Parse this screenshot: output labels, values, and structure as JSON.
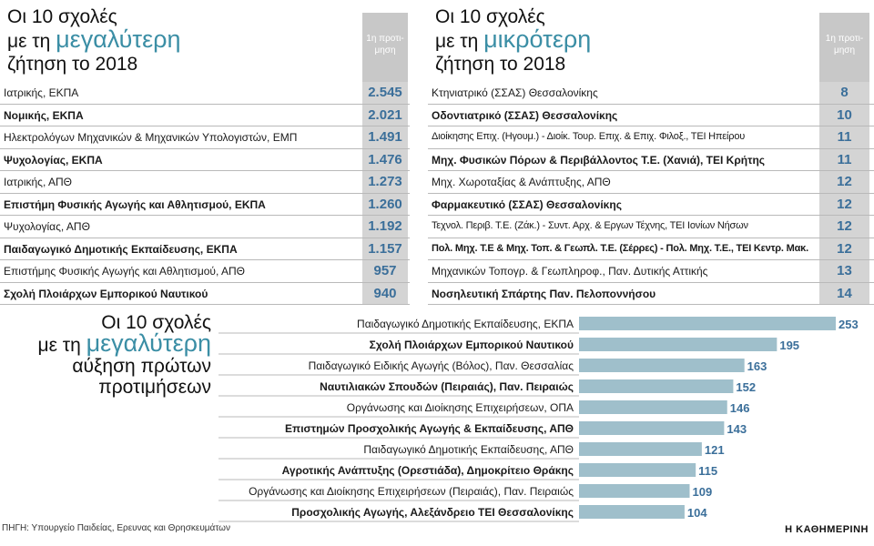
{
  "left_table": {
    "title_line1": "Οι 10 σχολές",
    "title_line2_prefix": "με τη ",
    "title_line2_highlight": "μεγαλύτερη",
    "title_line3": "ζήτηση το 2018",
    "column_header": "1η προτι- μηση",
    "rows": [
      {
        "name": "Ιατρικής, ΕΚΠΑ",
        "value": "2.545",
        "bold": false
      },
      {
        "name": "Νομικής,  ΕΚΠΑ",
        "value": "2.021",
        "bold": true
      },
      {
        "name": "Ηλεκτρολόγων Μηχανικών & Μηχανικών Υπολογιστών, ΕΜΠ",
        "value": "1.491",
        "bold": false
      },
      {
        "name": "Ψυχολογίας, ΕΚΠΑ",
        "value": "1.476",
        "bold": true
      },
      {
        "name": "Ιατρικής, ΑΠΘ",
        "value": "1.273",
        "bold": false
      },
      {
        "name": "Επιστήμη Φυσικής Αγωγής και Αθλητισμού, ΕΚΠΑ",
        "value": "1.260",
        "bold": true
      },
      {
        "name": "Ψυχολογίας, ΑΠΘ",
        "value": "1.192",
        "bold": false
      },
      {
        "name": "Παιδαγωγικό Δημοτικής Εκπαίδευσης, ΕΚΠΑ",
        "value": "1.157",
        "bold": true
      },
      {
        "name": "Επιστήμης Φυσικής Αγωγής και Αθλητισμού, ΑΠΘ",
        "value": "957",
        "bold": false
      },
      {
        "name": "Σχολή Πλοιάρχων Εμπορικού Ναυτικού",
        "value": "940",
        "bold": true
      }
    ]
  },
  "right_table": {
    "title_line1": "Οι 10 σχολές",
    "title_line2_prefix": "με τη ",
    "title_line2_highlight": "μικρότερη",
    "title_line3": "ζήτηση το 2018",
    "column_header": "1η προτι- μηση",
    "rows": [
      {
        "name": "Κτηνιατρικό (ΣΣΑΣ) Θεσσαλονίκης",
        "value": "8",
        "bold": false
      },
      {
        "name": "Οδοντιατρικό (ΣΣΑΣ) Θεσσαλονίκης",
        "value": "10",
        "bold": true
      },
      {
        "name": "Διοίκησης Επιχ. (Ηγουμ.) - Διοίκ. Τουρ. Επιχ. & Επιχ. Φιλοξ., ΤΕΙ Ηπείρου",
        "value": "11",
        "bold": false
      },
      {
        "name": "Μηχ. Φυσικών Πόρων & Περιβάλλοντος Τ.Ε. (Χανιά), ΤΕΙ Κρήτης",
        "value": "11",
        "bold": true
      },
      {
        "name": "Μηχ. Χωροταξίας & Ανάπτυξης, ΑΠΘ",
        "value": "12",
        "bold": false
      },
      {
        "name": "Φαρμακευτικό (ΣΣΑΣ) Θεσσαλονίκης",
        "value": "12",
        "bold": true
      },
      {
        "name": "Τεχνολ. Περιβ. Τ.Ε. (Ζάκ.) - Συντ. Αρχ. & Εργων Τέχνης, ΤΕΙ Ιονίων Νήσων",
        "value": "12",
        "bold": false
      },
      {
        "name": "Πολ. Μηχ. Τ.Ε & Μηχ. Τοπ. & Γεωπλ. Τ.Ε. (Σέρρες) - Πολ. Μηχ. Τ.Ε., ΤΕΙ Κεντρ. Μακ.",
        "value": "12",
        "bold": true
      },
      {
        "name": "Μηχανικών Τοπογρ. & Γεωπληροφ., Παν. Δυτικής Αττικής",
        "value": "13",
        "bold": false
      },
      {
        "name": "Νοσηλευτική Σπάρτης Παν. Πελοποννήσου",
        "value": "14",
        "bold": true
      }
    ]
  },
  "chart_data": {
    "type": "bar",
    "title_line1": "Οι 10 σχολές",
    "title_line2_prefix": "με τη ",
    "title_line2_highlight": "μεγαλύτερη",
    "title_line3": "αύξηση πρώτων",
    "title_line4": "προτιμήσεων",
    "orientation": "horizontal",
    "categories": [
      "Παιδαγωγικό Δημοτικής Εκπαίδευσης, ΕΚΠΑ",
      "Σχολή Πλοιάρχων Εμπορικού Ναυτικού",
      "Παιδαγωγικό Ειδικής Αγωγής (Βόλος), Παν. Θεσσαλίας",
      "Ναυτιλιακών Σπουδών (Πειραιάς), Παν. Πειραιώς",
      "Οργάνωσης και Διοίκησης Επιχειρήσεων, ΟΠΑ",
      "Επιστημών Προσχολικής Αγωγής & Εκπαίδευσης, ΑΠΘ",
      "Παιδαγωγικό Δημοτικής Εκπαίδευσης, ΑΠΘ",
      "Αγροτικής Ανάπτυξης (Ορεστιάδα), Δημοκρίτειο Θράκης",
      "Οργάνωσης και Διοίκησης Επιχειρήσεων (Πειραιάς), Παν. Πειραιώς",
      "Προσχολικής Αγωγής, Αλεξάνδρειο ΤΕΙ Θεσσαλονίκης"
    ],
    "bold": [
      false,
      true,
      false,
      true,
      false,
      true,
      false,
      true,
      false,
      true
    ],
    "values": [
      253,
      195,
      163,
      152,
      146,
      143,
      121,
      115,
      109,
      104
    ],
    "xlim": [
      0,
      253
    ],
    "bar_color": "#9fbfcb",
    "grid": false
  },
  "colors": {
    "accent": "#3b8ea5",
    "value_text": "#3b6f9a",
    "header_bg": "#c8c8c8"
  },
  "source": "ΠΗΓΗ: Υπουργείο Παιδείας, Ερευνας και Θρησκευμάτων",
  "brand": "Η ΚΑΘΗΜΕΡΙΝΗ"
}
